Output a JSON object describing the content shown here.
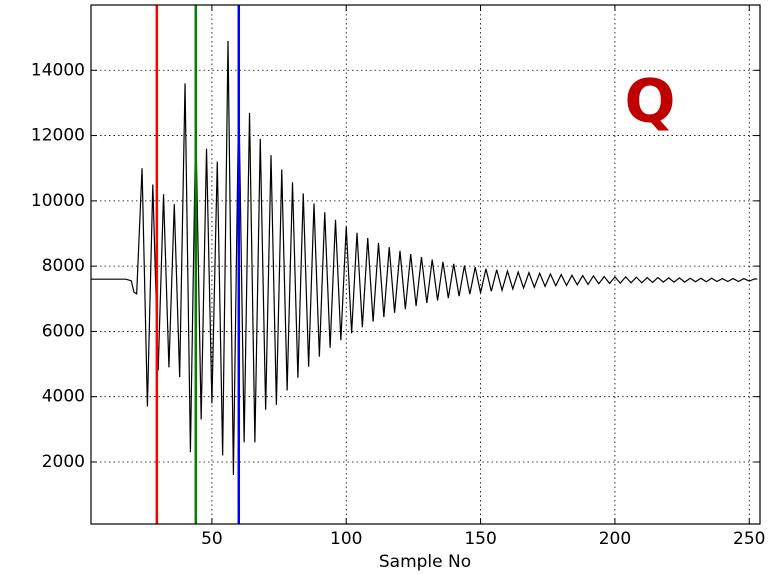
{
  "chart_data": {
    "type": "line",
    "xlabel": "Sample No",
    "xlim": [
      5,
      254
    ],
    "ylim": [
      100,
      16000
    ],
    "xticks": [
      50,
      100,
      150,
      200,
      250
    ],
    "yticks": [
      2000,
      4000,
      6000,
      8000,
      10000,
      12000,
      14000
    ],
    "grid": true,
    "annotation": {
      "text": "Q",
      "color": "#c00000"
    },
    "vlines": [
      {
        "x": 29.5,
        "color": "#ff0000"
      },
      {
        "x": 44,
        "color": "#008000"
      },
      {
        "x": 60,
        "color": "#0000ff"
      }
    ],
    "series": [
      {
        "color": "#000000",
        "x": [
          1,
          18,
          20,
          21,
          22,
          24,
          26,
          28,
          30,
          32,
          34,
          36,
          38,
          40,
          42,
          44,
          46,
          48,
          50,
          52,
          54,
          56,
          58,
          60,
          62,
          64,
          66,
          68,
          70,
          72,
          74,
          76,
          78,
          80,
          82,
          84,
          86,
          88,
          90,
          92,
          94,
          96,
          98,
          100,
          102,
          104,
          106,
          108,
          110,
          112,
          114,
          116,
          118,
          120,
          122,
          124,
          126,
          128,
          130,
          132,
          134,
          136,
          138,
          140,
          142,
          144,
          146,
          148,
          150,
          152,
          154,
          156,
          158,
          160,
          162,
          164,
          166,
          168,
          170,
          172,
          174,
          176,
          178,
          180,
          182,
          184,
          186,
          188,
          190,
          192,
          194,
          196,
          198,
          200,
          202,
          204,
          206,
          208,
          210,
          212,
          214,
          216,
          218,
          220,
          222,
          224,
          226,
          228,
          230,
          232,
          234,
          236,
          238,
          240,
          242,
          244,
          246,
          248,
          250,
          252,
          253
        ],
        "values": [
          7600,
          7600,
          7550,
          7200,
          7150,
          11000,
          3700,
          10500,
          4800,
          10200,
          4900,
          9900,
          4600,
          13600,
          2300,
          12400,
          3300,
          11600,
          3800,
          11200,
          2200,
          14900,
          1600,
          13300,
          2600,
          12700,
          2600,
          11900,
          3600,
          11400,
          3750,
          10960,
          4190,
          10570,
          4580,
          10230,
          4920,
          9920,
          5230,
          9650,
          5500,
          9420,
          5730,
          9210,
          5940,
          9020,
          6130,
          8860,
          6300,
          8710,
          6440,
          8580,
          6570,
          8470,
          6680,
          8370,
          6780,
          8280,
          6870,
          8200,
          6950,
          8130,
          7020,
          8070,
          7080,
          8020,
          7140,
          7970,
          7180,
          7920,
          7230,
          7890,
          7260,
          7850,
          7300,
          7820,
          7330,
          7800,
          7350,
          7780,
          7380,
          7760,
          7400,
          7740,
          7410,
          7720,
          7430,
          7710,
          7440,
          7700,
          7460,
          7680,
          7470,
          7670,
          7480,
          7670,
          7490,
          7660,
          7490,
          7650,
          7500,
          7650,
          7510,
          7640,
          7510,
          7640,
          7510,
          7630,
          7520,
          7630,
          7520,
          7630,
          7530,
          7620,
          7530,
          7620,
          7530,
          7620,
          7540,
          7610,
          7600
        ]
      }
    ]
  }
}
